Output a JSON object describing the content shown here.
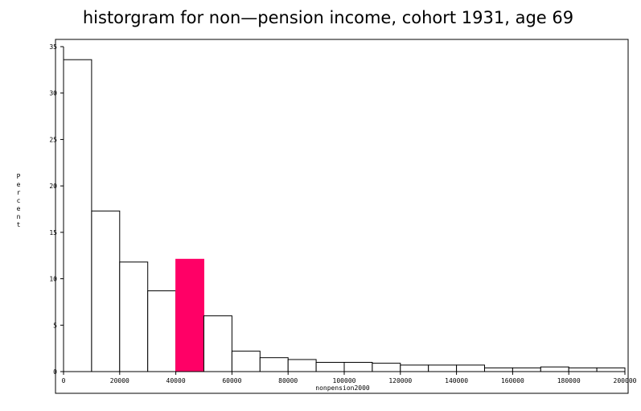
{
  "chart_data": {
    "type": "bar",
    "title": "historgram for non—pension income, cohort 1931, age 69",
    "xlabel": "nonpension2000",
    "ylabel": "Percent",
    "xlim": [
      0,
      200000
    ],
    "ylim": [
      0,
      35
    ],
    "bin_width": 10000,
    "x_ticks": [
      0,
      20000,
      40000,
      60000,
      80000,
      100000,
      120000,
      140000,
      160000,
      180000,
      200000
    ],
    "x_tick_labels": [
      "0",
      "20000",
      "40000",
      "60000",
      "80000",
      "100000",
      "120000",
      "140000",
      "160000",
      "180000",
      "200000"
    ],
    "y_ticks": [
      0,
      5,
      10,
      15,
      20,
      25,
      30,
      35
    ],
    "y_tick_labels": [
      "0",
      "5",
      "10",
      "15",
      "20",
      "25",
      "30",
      "35"
    ],
    "bins": [
      {
        "start": 0,
        "end": 10000,
        "value": 33.6
      },
      {
        "start": 10000,
        "end": 20000,
        "value": 17.3
      },
      {
        "start": 20000,
        "end": 30000,
        "value": 11.8
      },
      {
        "start": 30000,
        "end": 40000,
        "value": 8.7
      },
      {
        "start": 40000,
        "end": 50000,
        "value": 12.1,
        "highlight": true
      },
      {
        "start": 50000,
        "end": 60000,
        "value": 6.0
      },
      {
        "start": 60000,
        "end": 70000,
        "value": 2.2
      },
      {
        "start": 70000,
        "end": 80000,
        "value": 1.5
      },
      {
        "start": 80000,
        "end": 90000,
        "value": 1.3
      },
      {
        "start": 90000,
        "end": 100000,
        "value": 1.0
      },
      {
        "start": 100000,
        "end": 110000,
        "value": 1.0
      },
      {
        "start": 110000,
        "end": 120000,
        "value": 0.9
      },
      {
        "start": 120000,
        "end": 130000,
        "value": 0.7
      },
      {
        "start": 130000,
        "end": 140000,
        "value": 0.7
      },
      {
        "start": 140000,
        "end": 150000,
        "value": 0.7
      },
      {
        "start": 150000,
        "end": 160000,
        "value": 0.4
      },
      {
        "start": 160000,
        "end": 170000,
        "value": 0.4
      },
      {
        "start": 170000,
        "end": 180000,
        "value": 0.5
      },
      {
        "start": 180000,
        "end": 190000,
        "value": 0.4
      },
      {
        "start": 190000,
        "end": 200000,
        "value": 0.4
      }
    ],
    "bar_color": "#ffffff",
    "highlight_color": "#ff0066",
    "grid": false,
    "legend": "none"
  }
}
